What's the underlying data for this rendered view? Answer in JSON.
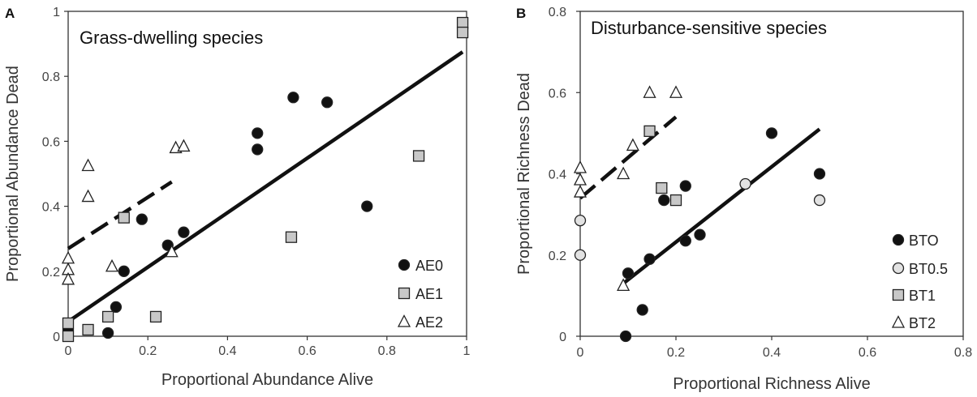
{
  "chart_data": [
    {
      "type": "scatter",
      "panel_label": "A",
      "title": "Grass-dwelling species",
      "xlabel": "Proportional Abundance Alive",
      "ylabel": "Proportional Abundance Dead",
      "xlim": [
        0,
        1
      ],
      "ylim": [
        0,
        1
      ],
      "xticks": [
        0,
        0.2,
        0.4,
        0.6,
        0.8,
        1
      ],
      "yticks": [
        0,
        0.2,
        0.4,
        0.6,
        0.8,
        1
      ],
      "xtick_labels": [
        "0",
        "0.2",
        "0.4",
        "0.6",
        "0.8",
        "1"
      ],
      "ytick_labels": [
        "0",
        "0.2",
        "0.4",
        "0.6",
        "0.8",
        "1"
      ],
      "grid": false,
      "legend_position": "bottom-right",
      "series": [
        {
          "name": "AE0",
          "marker": "circle",
          "fill": "#111111",
          "points": [
            [
              0,
              0.02
            ],
            [
              0.1,
              0.01
            ],
            [
              0.12,
              0.09
            ],
            [
              0.14,
              0.2
            ],
            [
              0.185,
              0.36
            ],
            [
              0.25,
              0.28
            ],
            [
              0.29,
              0.32
            ],
            [
              0.475,
              0.625
            ],
            [
              0.475,
              0.575
            ],
            [
              0.565,
              0.735
            ],
            [
              0.65,
              0.72
            ],
            [
              0.75,
              0.4
            ]
          ]
        },
        {
          "name": "AE1",
          "marker": "square",
          "fill": "#c8c8c8",
          "points": [
            [
              0,
              0.0
            ],
            [
              0,
              0.04
            ],
            [
              0.05,
              0.02
            ],
            [
              0.1,
              0.06
            ],
            [
              0.14,
              0.365
            ],
            [
              0.22,
              0.06
            ],
            [
              0.56,
              0.305
            ],
            [
              0.88,
              0.555
            ],
            [
              0.99,
              0.965
            ],
            [
              0.99,
              0.935
            ]
          ]
        },
        {
          "name": "AE2",
          "marker": "triangle",
          "fill": "#ffffff",
          "points": [
            [
              0,
              0.24
            ],
            [
              0,
              0.205
            ],
            [
              0,
              0.175
            ],
            [
              0.05,
              0.525
            ],
            [
              0.05,
              0.43
            ],
            [
              0.11,
              0.215
            ],
            [
              0.26,
              0.26
            ],
            [
              0.27,
              0.58
            ],
            [
              0.29,
              0.585
            ]
          ]
        }
      ],
      "trendlines": [
        {
          "style": "solid",
          "x": [
            0,
            0.99
          ],
          "y": [
            0.045,
            0.875
          ]
        },
        {
          "style": "dashed",
          "x": [
            0,
            0.26
          ],
          "y": [
            0.27,
            0.475
          ]
        }
      ]
    },
    {
      "type": "scatter",
      "panel_label": "B",
      "title": "Disturbance-sensitive species",
      "xlabel": "Proportional Richness Alive",
      "ylabel": "Proportional Richness Dead",
      "xlim": [
        0,
        0.8
      ],
      "ylim": [
        0,
        0.8
      ],
      "xticks": [
        0,
        0.2,
        0.4,
        0.6,
        0.8
      ],
      "yticks": [
        0,
        0.2,
        0.4,
        0.6,
        0.8
      ],
      "xtick_labels": [
        "0",
        "0.2",
        "0.4",
        "0.6",
        "0.8"
      ],
      "ytick_labels": [
        "0",
        "0.2",
        "0.4",
        "0.6",
        "0.8"
      ],
      "grid": false,
      "legend_position": "bottom-right",
      "series": [
        {
          "name": "BTO",
          "marker": "circle",
          "fill": "#111111",
          "points": [
            [
              0.095,
              0.0
            ],
            [
              0.1,
              0.155
            ],
            [
              0.13,
              0.065
            ],
            [
              0.145,
              0.19
            ],
            [
              0.175,
              0.335
            ],
            [
              0.22,
              0.37
            ],
            [
              0.22,
              0.235
            ],
            [
              0.25,
              0.25
            ],
            [
              0.4,
              0.5
            ],
            [
              0.5,
              0.4
            ]
          ]
        },
        {
          "name": "BT0.5",
          "marker": "circle",
          "fill": "#e2e2e2",
          "points": [
            [
              0,
              0.2
            ],
            [
              0,
              0.285
            ],
            [
              0.345,
              0.375
            ],
            [
              0.5,
              0.335
            ]
          ]
        },
        {
          "name": "BT1",
          "marker": "square",
          "fill": "#c8c8c8",
          "points": [
            [
              0.145,
              0.505
            ],
            [
              0.17,
              0.365
            ],
            [
              0.2,
              0.335
            ]
          ]
        },
        {
          "name": "BT2",
          "marker": "triangle",
          "fill": "#ffffff",
          "points": [
            [
              0,
              0.415
            ],
            [
              0,
              0.385
            ],
            [
              0,
              0.355
            ],
            [
              0.09,
              0.125
            ],
            [
              0.09,
              0.4
            ],
            [
              0.11,
              0.47
            ],
            [
              0.145,
              0.6
            ],
            [
              0.2,
              0.6
            ]
          ]
        }
      ],
      "trendlines": [
        {
          "style": "solid",
          "x": [
            0.09,
            0.5
          ],
          "y": [
            0.13,
            0.51
          ]
        },
        {
          "style": "dashed",
          "x": [
            0,
            0.2
          ],
          "y": [
            0.34,
            0.54
          ]
        }
      ]
    }
  ]
}
